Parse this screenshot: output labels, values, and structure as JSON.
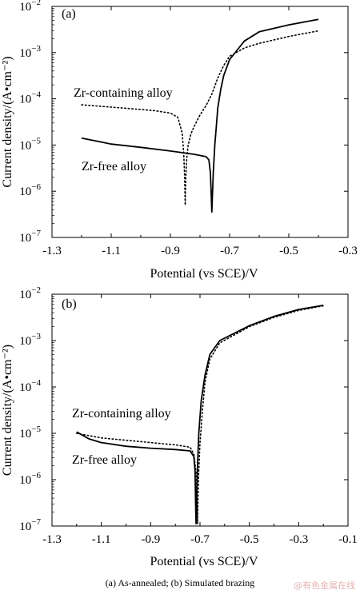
{
  "caption": "(a) As-annealed; (b)  Simulated brazing",
  "watermark": "@有色金属在线",
  "chart_data": [
    {
      "type": "line",
      "panel_label": "(a)",
      "xlabel": "Potential (vs SCE)/V",
      "ylabel": "Current density/(A•cm⁻²)",
      "xlim": [
        -1.3,
        -0.3
      ],
      "ylim_exp": [
        -7,
        -2
      ],
      "y_scale": "log",
      "x_ticks": [
        "-1.3",
        "-1.1",
        "-0.9",
        "-0.7",
        "-0.5",
        "-0.3"
      ],
      "x_tick_values": [
        -1.3,
        -1.1,
        -0.9,
        -0.7,
        -0.5,
        -0.3
      ],
      "y_ticks": [
        "10",
        "10",
        "10",
        "10",
        "10",
        "10"
      ],
      "y_tick_exps": [
        "-7",
        "-6",
        "-5",
        "-4",
        "-3",
        "-2"
      ],
      "y_tick_values": [
        -7,
        -6,
        -5,
        -4,
        -3,
        -2
      ],
      "annotations": [
        {
          "text": "Zr-containing alloy",
          "series": "Zr-containing alloy"
        },
        {
          "text": "Zr-free alloy",
          "series": "Zr-free alloy"
        }
      ],
      "series": [
        {
          "name": "Zr-containing alloy",
          "style": "dotted",
          "points": [
            [
              -1.2,
              -4.13
            ],
            [
              -1.1,
              -4.18
            ],
            [
              -1.0,
              -4.23
            ],
            [
              -0.95,
              -4.26
            ],
            [
              -0.9,
              -4.31
            ],
            [
              -0.875,
              -4.4
            ],
            [
              -0.86,
              -4.75
            ],
            [
              -0.855,
              -5.2
            ],
            [
              -0.852,
              -5.7
            ],
            [
              -0.85,
              -6.3
            ],
            [
              -0.848,
              -5.7
            ],
            [
              -0.845,
              -5.3
            ],
            [
              -0.84,
              -5.0
            ],
            [
              -0.83,
              -4.75
            ],
            [
              -0.82,
              -4.6
            ],
            [
              -0.8,
              -4.35
            ],
            [
              -0.78,
              -4.15
            ],
            [
              -0.76,
              -3.9
            ],
            [
              -0.74,
              -3.55
            ],
            [
              -0.72,
              -3.28
            ],
            [
              -0.7,
              -3.08
            ],
            [
              -0.65,
              -2.9
            ],
            [
              -0.6,
              -2.8
            ],
            [
              -0.5,
              -2.65
            ],
            [
              -0.4,
              -2.53
            ]
          ]
        },
        {
          "name": "Zr-free alloy",
          "style": "solid",
          "points": [
            [
              -1.2,
              -4.85
            ],
            [
              -1.1,
              -4.98
            ],
            [
              -1.0,
              -5.05
            ],
            [
              -0.9,
              -5.13
            ],
            [
              -0.82,
              -5.2
            ],
            [
              -0.78,
              -5.25
            ],
            [
              -0.77,
              -5.32
            ],
            [
              -0.765,
              -5.6
            ],
            [
              -0.762,
              -6.1
            ],
            [
              -0.76,
              -6.45
            ],
            [
              -0.758,
              -6.1
            ],
            [
              -0.755,
              -5.6
            ],
            [
              -0.75,
              -5.0
            ],
            [
              -0.745,
              -4.6
            ],
            [
              -0.74,
              -4.2
            ],
            [
              -0.73,
              -3.8
            ],
            [
              -0.72,
              -3.5
            ],
            [
              -0.7,
              -3.15
            ],
            [
              -0.65,
              -2.75
            ],
            [
              -0.6,
              -2.55
            ],
            [
              -0.5,
              -2.4
            ],
            [
              -0.4,
              -2.28
            ]
          ]
        }
      ]
    },
    {
      "type": "line",
      "panel_label": "(b)",
      "xlabel": "Potential (vs SCE)/V",
      "ylabel": "Current density/(A•cm⁻²)",
      "xlim": [
        -1.3,
        -0.1
      ],
      "ylim_exp": [
        -7,
        -2
      ],
      "y_scale": "log",
      "x_ticks": [
        "-1.3",
        "-1.1",
        "-0.9",
        "-0.7",
        "-0.5",
        "-0.3",
        "-0.1"
      ],
      "x_tick_values": [
        -1.3,
        -1.1,
        -0.9,
        -0.7,
        -0.5,
        -0.3,
        -0.1
      ],
      "y_ticks": [
        "10",
        "10",
        "10",
        "10",
        "10",
        "10"
      ],
      "y_tick_exps": [
        "-7",
        "-6",
        "-5",
        "-4",
        "-3",
        "-2"
      ],
      "y_tick_values": [
        -7,
        -6,
        -5,
        -4,
        -3,
        -2
      ],
      "annotations": [
        {
          "text": "Zr-containing alloy",
          "series": "Zr-containing alloy"
        },
        {
          "text": "Zr-free alloy",
          "series": "Zr-free alloy"
        }
      ],
      "series": [
        {
          "name": "Zr-containing alloy",
          "style": "dotted",
          "points": [
            [
              -1.2,
              -5.0
            ],
            [
              -1.1,
              -5.1
            ],
            [
              -1.0,
              -5.15
            ],
            [
              -0.9,
              -5.2
            ],
            [
              -0.8,
              -5.25
            ],
            [
              -0.74,
              -5.3
            ],
            [
              -0.725,
              -5.45
            ],
            [
              -0.715,
              -5.9
            ],
            [
              -0.712,
              -6.5
            ],
            [
              -0.71,
              -6.95
            ],
            [
              -0.708,
              -6.4
            ],
            [
              -0.705,
              -5.8
            ],
            [
              -0.7,
              -5.2
            ],
            [
              -0.69,
              -4.5
            ],
            [
              -0.68,
              -3.9
            ],
            [
              -0.66,
              -3.4
            ],
            [
              -0.62,
              -3.05
            ],
            [
              -0.5,
              -2.7
            ],
            [
              -0.4,
              -2.5
            ],
            [
              -0.3,
              -2.35
            ],
            [
              -0.2,
              -2.25
            ]
          ]
        },
        {
          "name": "Zr-free alloy",
          "style": "solid",
          "points": [
            [
              -1.2,
              -4.97
            ],
            [
              -1.15,
              -5.12
            ],
            [
              -1.1,
              -5.2
            ],
            [
              -1.0,
              -5.28
            ],
            [
              -0.9,
              -5.32
            ],
            [
              -0.8,
              -5.35
            ],
            [
              -0.74,
              -5.38
            ],
            [
              -0.725,
              -5.5
            ],
            [
              -0.72,
              -5.8
            ],
            [
              -0.718,
              -6.5
            ],
            [
              -0.716,
              -6.95
            ],
            [
              -0.714,
              -6.5
            ],
            [
              -0.71,
              -5.7
            ],
            [
              -0.705,
              -5.0
            ],
            [
              -0.695,
              -4.3
            ],
            [
              -0.68,
              -3.75
            ],
            [
              -0.66,
              -3.3
            ],
            [
              -0.62,
              -3.0
            ],
            [
              -0.5,
              -2.68
            ],
            [
              -0.4,
              -2.48
            ],
            [
              -0.3,
              -2.33
            ],
            [
              -0.2,
              -2.24
            ]
          ]
        }
      ]
    }
  ]
}
